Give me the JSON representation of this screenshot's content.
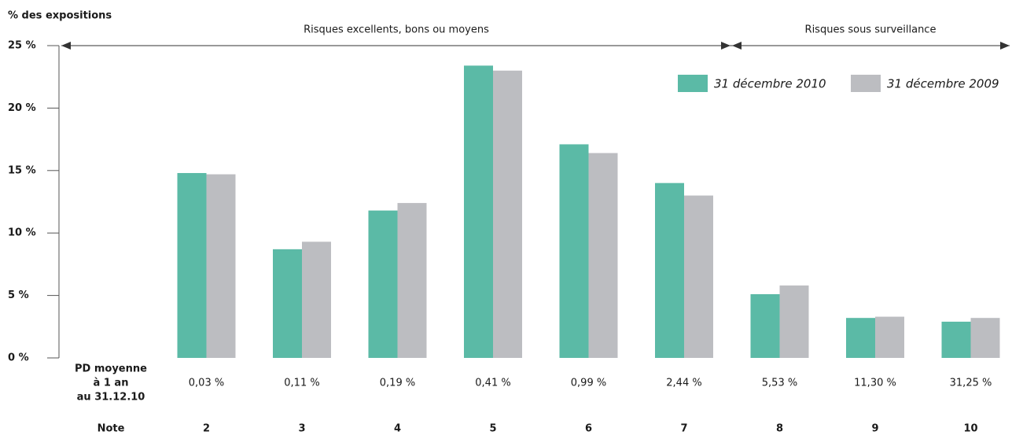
{
  "chart_data": {
    "type": "bar",
    "y_axis_label": "% des expositions",
    "annotations": [
      "Risques excellents, bons ou moyens",
      "Risques sous surveillance"
    ],
    "pd_header": [
      "PD moyenne",
      "à 1 an",
      "au 31.12.10"
    ],
    "note_header": "Note",
    "categories": [
      "2",
      "3",
      "4",
      "5",
      "6",
      "7",
      "8",
      "9",
      "10"
    ],
    "pd_labels": [
      "0,03 %",
      "0,11 %",
      "0,19 %",
      "0,41 %",
      "0,99 %",
      "2,44 %",
      "5,53 %",
      "11,30 %",
      "31,25 %"
    ],
    "series": [
      {
        "name": "31 décembre 2010",
        "color": "#5bbaa6",
        "values": [
          14.8,
          8.7,
          11.8,
          23.4,
          17.1,
          14.0,
          5.1,
          3.2,
          2.9
        ]
      },
      {
        "name": "31 décembre 2009",
        "color": "#bcbdc1",
        "values": [
          14.7,
          9.3,
          12.4,
          23.0,
          16.4,
          13.0,
          5.8,
          3.3,
          3.2
        ]
      }
    ],
    "ylim": [
      0,
      25
    ],
    "yticks": [
      {
        "value": 0,
        "label": "0 %"
      },
      {
        "value": 5,
        "label": "5 %"
      },
      {
        "value": 10,
        "label": "10 %"
      },
      {
        "value": 15,
        "label": "15 %"
      },
      {
        "value": 20,
        "label": "20 %"
      },
      {
        "value": 25,
        "label": "25 %"
      }
    ],
    "legend": "top-right"
  }
}
